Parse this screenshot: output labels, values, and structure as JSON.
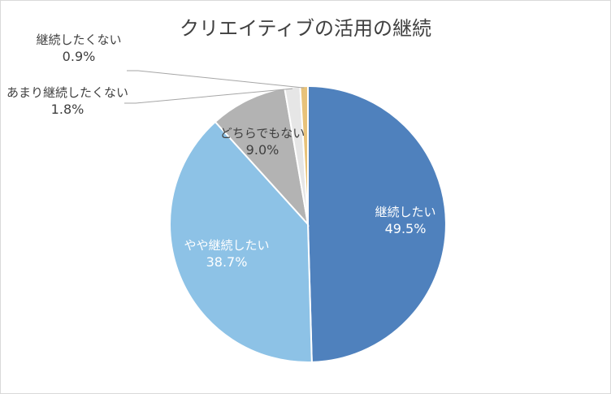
{
  "chart_data": {
    "type": "pie",
    "title": "クリエイティブの活用の継続",
    "slices": [
      {
        "label": "継続したい",
        "value": 49.5,
        "value_label": "49.5%",
        "color": "#4f81bd"
      },
      {
        "label": "やや継続したい",
        "value": 38.7,
        "value_label": "38.7%",
        "color": "#8dc2e6"
      },
      {
        "label": "どちらでもない",
        "value": 9.0,
        "value_label": "9.0%",
        "color": "#b3b3b3"
      },
      {
        "label": "あまり継続したくない",
        "value": 1.8,
        "value_label": "1.8%",
        "color": "#e6e6e6"
      },
      {
        "label": "継続したくない",
        "value": 0.9,
        "value_label": "0.9%",
        "color": "#e8c27a"
      }
    ]
  }
}
